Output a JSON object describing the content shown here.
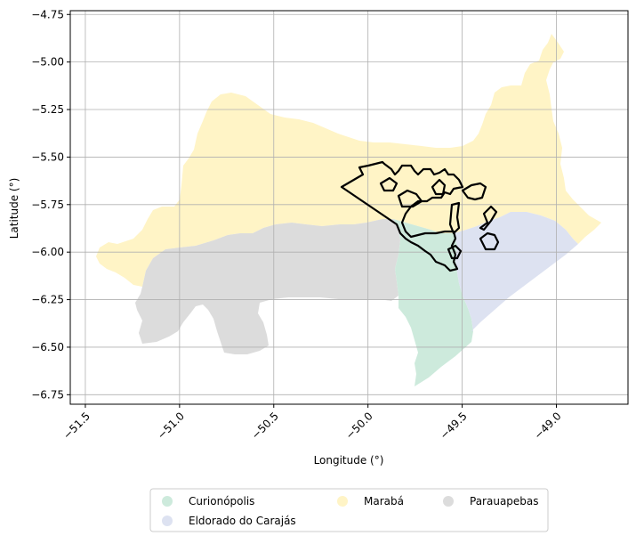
{
  "chart_data": {
    "type": "map",
    "xlabel": "Longitude (°)",
    "ylabel": "Latitude (°)",
    "xlim": [
      -51.58,
      -48.62
    ],
    "ylim": [
      -6.8,
      -4.73
    ],
    "x_ticks": [
      -51.5,
      -51.0,
      -50.5,
      -50.0,
      -49.5,
      -49.0
    ],
    "x_tick_labels": [
      "−51.5",
      "−51.0",
      "−50.5",
      "−50.0",
      "−49.5",
      "−49.0"
    ],
    "y_ticks": [
      -4.75,
      -5.0,
      -5.25,
      -5.5,
      -5.75,
      -6.0,
      -6.25,
      -6.5,
      -6.75
    ],
    "y_tick_labels": [
      "−4.75",
      "−5.00",
      "−5.25",
      "−5.50",
      "−5.75",
      "−6.00",
      "−6.25",
      "−6.50",
      "−6.75"
    ],
    "grid": true,
    "legend_position": "bottom-center-outside",
    "regions": [
      {
        "name": "Curionópolis",
        "color": "#cdeadc"
      },
      {
        "name": "Eldorado do Carajás",
        "color": "#dde2f1"
      },
      {
        "name": "Marabá",
        "color": "#fff4c6"
      },
      {
        "name": "Parauapebas",
        "color": "#dcdcdc"
      }
    ],
    "overlay": {
      "stroke": "#000000",
      "description": "black outline polygons"
    }
  },
  "legend": {
    "items": [
      {
        "label": "Curionópolis",
        "color": "#cdeadc"
      },
      {
        "label": "Eldorado do Carajás",
        "color": "#dde2f1"
      },
      {
        "label": "Marabá",
        "color": "#fff4c6"
      },
      {
        "label": "Parauapebas",
        "color": "#dcdcdc"
      }
    ]
  }
}
